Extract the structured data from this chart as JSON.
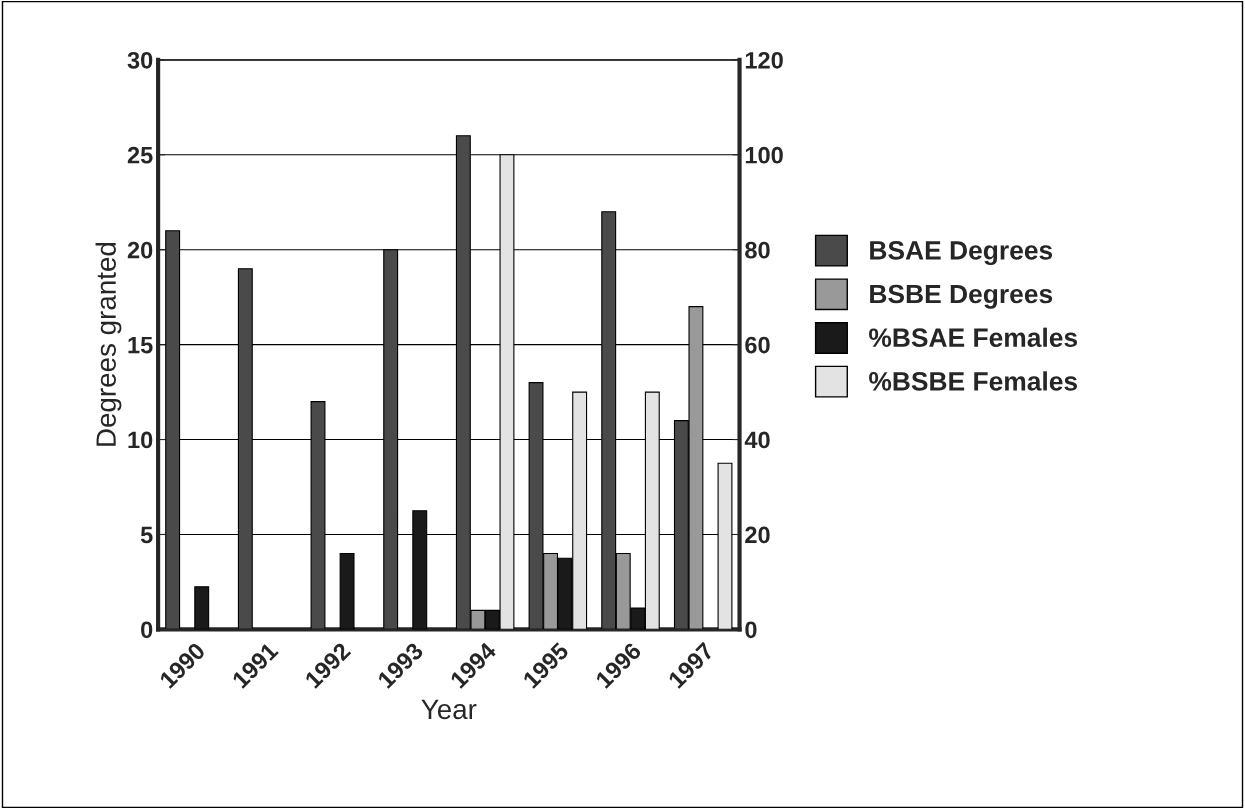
{
  "chart_data": {
    "type": "bar",
    "xlabel": "Year",
    "ylabel": "Degrees granted",
    "categories": [
      "1990",
      "1991",
      "1992",
      "1993",
      "1994",
      "1995",
      "1996",
      "1997"
    ],
    "series": [
      {
        "name": "BSAE Degrees",
        "color": "#4a4a4a",
        "values": [
          21,
          19,
          12,
          20,
          26,
          13,
          22,
          11
        ]
      },
      {
        "name": "BSBE Degrees",
        "color": "#999999",
        "values": [
          null,
          null,
          null,
          null,
          1,
          4,
          4,
          17
        ]
      },
      {
        "name": "%BSAE Females",
        "color": "#1a1a1a",
        "axis": "y2",
        "values": [
          9,
          null,
          16,
          25,
          4,
          15,
          4.5,
          null
        ]
      },
      {
        "name": "%BSBE Females",
        "color": "#e3e3e3",
        "axis": "y2",
        "values": [
          null,
          null,
          null,
          null,
          100,
          50,
          50,
          35
        ]
      }
    ],
    "ylim": [
      0,
      30
    ],
    "yticks": [
      0,
      5,
      10,
      15,
      20,
      25,
      30
    ],
    "y2lim": [
      0,
      120
    ],
    "y2ticks": [
      0,
      20,
      40,
      60,
      80,
      100,
      120
    ],
    "grid": "y",
    "legend": "right"
  }
}
